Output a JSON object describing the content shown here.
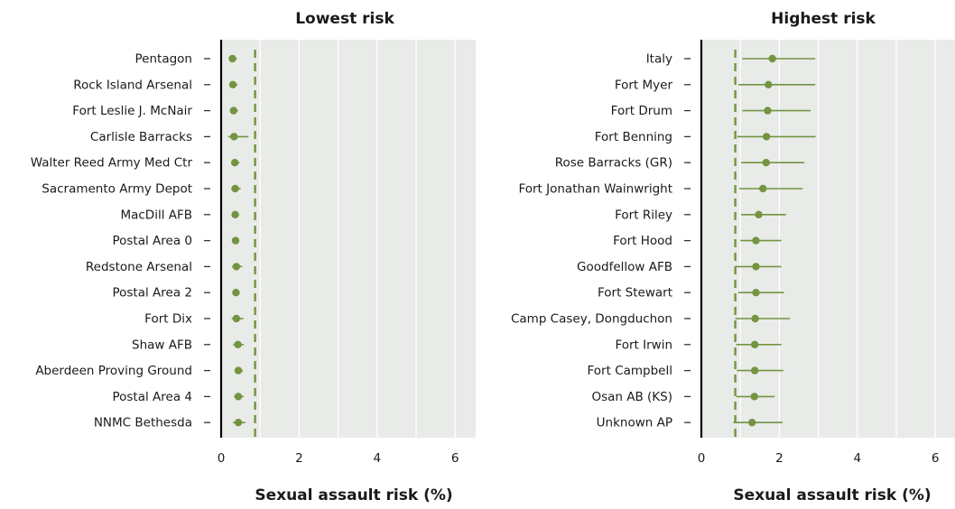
{
  "chart_data": [
    {
      "type": "scatter",
      "title": "Lowest risk",
      "xlabel": "Sexual assault risk (%)",
      "xlim": [
        0,
        6.5
      ],
      "xticks": [
        0,
        2,
        4,
        6
      ],
      "reference_line": 0.87,
      "grid": true,
      "categories": [
        "Pentagon",
        "Rock Island Arsenal",
        "Fort Leslie J. McNair",
        "Carlisle Barracks",
        "Walter Reed Army Med Ctr",
        "Sacramento Army Depot",
        "MacDill AFB",
        "Postal Area 0",
        "Redstone Arsenal",
        "Postal Area 2",
        "Fort Dix",
        "Shaw AFB",
        "Aberdeen Proving Ground",
        "Postal Area 4",
        "NNMC Bethesda"
      ],
      "series": [
        {
          "values": [
            0.29,
            0.3,
            0.32,
            0.33,
            0.35,
            0.36,
            0.36,
            0.37,
            0.39,
            0.38,
            0.39,
            0.43,
            0.44,
            0.44,
            0.44
          ],
          "lower": [
            0.22,
            0.22,
            0.24,
            0.18,
            0.27,
            0.26,
            0.28,
            0.31,
            0.28,
            0.3,
            0.27,
            0.31,
            0.34,
            0.33,
            0.3
          ],
          "upper": [
            0.4,
            0.42,
            0.43,
            0.7,
            0.47,
            0.5,
            0.46,
            0.45,
            0.54,
            0.47,
            0.57,
            0.58,
            0.56,
            0.58,
            0.62
          ]
        }
      ]
    },
    {
      "type": "scatter",
      "title": "Highest risk",
      "xlabel": "Sexual assault risk (%)",
      "xlim": [
        0,
        6.5
      ],
      "xticks": [
        0,
        2,
        4,
        6
      ],
      "reference_line": 0.87,
      "grid": true,
      "categories": [
        "Italy",
        "Fort Myer",
        "Fort Drum",
        "Fort Benning",
        "Rose Barracks (GR)",
        "Fort Jonathan Wainwright",
        "Fort Riley",
        "Fort Hood",
        "Goodfellow AFB",
        "Fort Stewart",
        "Camp Casey, Dongduchon",
        "Fort Irwin",
        "Fort Campbell",
        "Osan AB (KS)",
        "Unknown AP"
      ],
      "series": [
        {
          "values": [
            1.82,
            1.72,
            1.7,
            1.67,
            1.66,
            1.58,
            1.47,
            1.4,
            1.4,
            1.4,
            1.38,
            1.37,
            1.37,
            1.36,
            1.3
          ],
          "lower": [
            1.05,
            0.95,
            1.05,
            0.92,
            1.02,
            0.97,
            1.02,
            1.0,
            0.87,
            0.95,
            0.87,
            0.89,
            0.91,
            0.9,
            0.82
          ],
          "upper": [
            2.92,
            2.92,
            2.8,
            2.93,
            2.64,
            2.6,
            2.17,
            2.05,
            2.05,
            2.12,
            2.27,
            2.05,
            2.1,
            1.88,
            2.08
          ]
        }
      ]
    }
  ]
}
